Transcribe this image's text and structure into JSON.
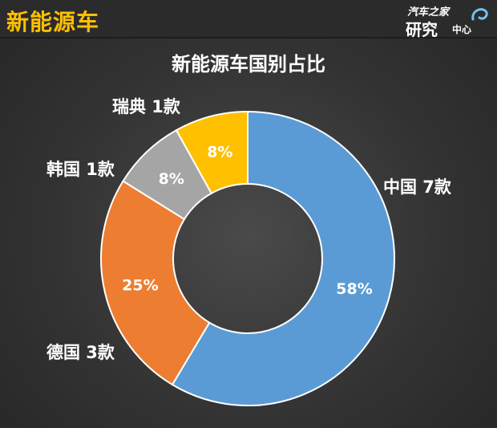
{
  "header": {
    "section_title": "新能源车",
    "logo_line1": "汽车之家",
    "logo_line2": "研究",
    "logo_line3": "中心"
  },
  "chart_data": {
    "type": "pie",
    "title": "新能源车国别占比",
    "donut": true,
    "categories": [
      "中国 7款",
      "德国 3款",
      "韩国 1款",
      "瑞典 1款"
    ],
    "values": [
      58,
      25,
      8,
      8
    ],
    "value_labels": [
      "58%",
      "25%",
      "8%",
      "8%"
    ],
    "colors": [
      "#5b9bd5",
      "#ed7d31",
      "#a5a5a5",
      "#ffc000"
    ]
  }
}
